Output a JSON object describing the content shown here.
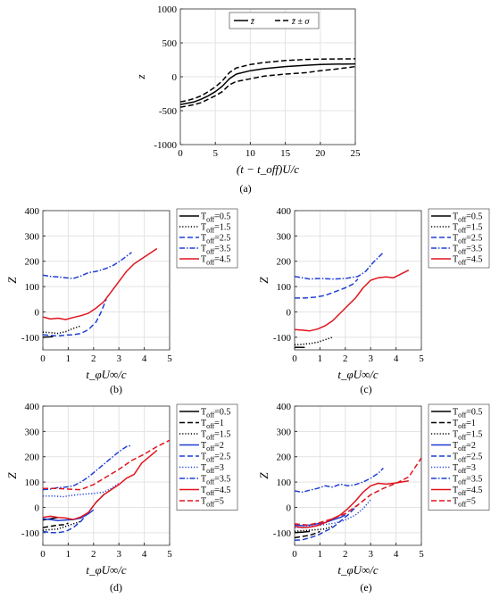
{
  "chart_data": [
    {
      "id": "a",
      "type": "line",
      "caption": "(a)",
      "xlabel": "(t − t_off)U/c",
      "ylabel": "z",
      "xlim": [
        0,
        25
      ],
      "ylim": [
        -1000,
        1000
      ],
      "xticks": [
        "0",
        "5",
        "10",
        "15",
        "20",
        "25"
      ],
      "yticks": [
        "-1000",
        "-500",
        "0",
        "500",
        "1000"
      ],
      "grid": true,
      "legend_position": "top-center",
      "legend_orientation": "horizontal",
      "series": [
        {
          "name": "z̄",
          "style": "solid",
          "color": "#000000",
          "x": [
            0,
            1,
            2,
            3,
            4,
            5,
            6,
            7,
            8,
            10,
            12,
            15,
            18,
            20,
            22,
            25
          ],
          "y": [
            -410,
            -390,
            -370,
            -330,
            -280,
            -220,
            -140,
            -30,
            40,
            90,
            120,
            150,
            170,
            180,
            185,
            190
          ]
        },
        {
          "name": "z̄ ± σ",
          "style": "dashed",
          "color": "#000000",
          "x": [
            0,
            1,
            2,
            3,
            4,
            5,
            6,
            7,
            8,
            10,
            12,
            15,
            18,
            20,
            22,
            25
          ],
          "y": [
            -370,
            -350,
            -320,
            -280,
            -220,
            -150,
            -60,
            60,
            130,
            180,
            210,
            240,
            255,
            260,
            262,
            265
          ]
        },
        {
          "name": "",
          "style": "dashed",
          "color": "#000000",
          "x": [
            0,
            1,
            2,
            3,
            4,
            5,
            6,
            7,
            8,
            10,
            12,
            15,
            18,
            20,
            22,
            25
          ],
          "y": [
            -450,
            -430,
            -410,
            -380,
            -330,
            -280,
            -220,
            -120,
            -70,
            -30,
            10,
            40,
            60,
            90,
            110,
            150
          ]
        }
      ]
    },
    {
      "id": "b",
      "type": "line",
      "caption": "(b)",
      "xlabel": "t_φU∞/c",
      "ylabel": "Z",
      "xlim": [
        0,
        5
      ],
      "ylim": [
        -150,
        400
      ],
      "xticks": [
        "0",
        "1",
        "2",
        "3",
        "4",
        "5"
      ],
      "yticks": [
        "-100",
        "0",
        "100",
        "200",
        "300",
        "400"
      ],
      "grid": true,
      "legend_position": "outside-right",
      "series": [
        {
          "name": "T_off=0.5",
          "style": "solid",
          "color": "#000000",
          "x": [
            0,
            0.4
          ],
          "y": [
            -100,
            -98
          ]
        },
        {
          "name": "T_off=1.5",
          "style": "dotted",
          "color": "#000000",
          "x": [
            0,
            0.3,
            0.6,
            0.9,
            1.2,
            1.5
          ],
          "y": [
            -80,
            -82,
            -85,
            -78,
            -65,
            -55
          ]
        },
        {
          "name": "T_off=2.5",
          "style": "dashed",
          "color": "#1f3fd6",
          "x": [
            0,
            0.3,
            0.6,
            0.9,
            1.2,
            1.5,
            1.8,
            2.1,
            2.3,
            2.5
          ],
          "y": [
            -90,
            -93,
            -95,
            -92,
            -90,
            -85,
            -70,
            -40,
            0,
            50
          ]
        },
        {
          "name": "T_off=3.5",
          "style": "dashdot",
          "color": "#1f3fd6",
          "x": [
            0,
            0.3,
            0.6,
            0.9,
            1.2,
            1.5,
            1.8,
            2.1,
            2.5,
            2.8,
            3.1,
            3.5
          ],
          "y": [
            145,
            140,
            138,
            135,
            132,
            142,
            155,
            160,
            172,
            185,
            205,
            235
          ]
        },
        {
          "name": "T_off=4.5",
          "style": "solid",
          "color": "#e0141e",
          "x": [
            0,
            0.3,
            0.6,
            0.9,
            1.2,
            1.5,
            1.8,
            2.1,
            2.4,
            2.7,
            3.0,
            3.3,
            3.6,
            3.9,
            4.2,
            4.5
          ],
          "y": [
            -20,
            -28,
            -25,
            -30,
            -22,
            -15,
            -5,
            15,
            40,
            80,
            120,
            160,
            190,
            210,
            230,
            250
          ]
        }
      ]
    },
    {
      "id": "c",
      "type": "line",
      "caption": "(c)",
      "xlabel": "t_φU∞/c",
      "ylabel": "Z",
      "xlim": [
        0,
        5
      ],
      "ylim": [
        -150,
        400
      ],
      "xticks": [
        "0",
        "1",
        "2",
        "3",
        "4",
        "5"
      ],
      "yticks": [
        "-100",
        "0",
        "100",
        "200",
        "300",
        "400"
      ],
      "grid": true,
      "legend_position": "outside-right",
      "series": [
        {
          "name": "T_off=0.5",
          "style": "solid",
          "color": "#000000",
          "x": [
            0,
            0.4
          ],
          "y": [
            -140,
            -140
          ]
        },
        {
          "name": "T_off=1.5",
          "style": "dotted",
          "color": "#000000",
          "x": [
            0,
            0.3,
            0.6,
            0.9,
            1.2,
            1.5
          ],
          "y": [
            -130,
            -128,
            -125,
            -120,
            -110,
            -100
          ]
        },
        {
          "name": "T_off=2.5",
          "style": "dashed",
          "color": "#1f3fd6",
          "x": [
            0,
            0.4,
            0.8,
            1.2,
            1.6,
            2.0,
            2.3,
            2.5
          ],
          "y": [
            55,
            55,
            58,
            65,
            80,
            95,
            110,
            130
          ]
        },
        {
          "name": "T_off=3.5",
          "style": "dashdot",
          "color": "#1f3fd6",
          "x": [
            0,
            0.3,
            0.6,
            1.0,
            1.5,
            2.0,
            2.5,
            2.8,
            3.1,
            3.5
          ],
          "y": [
            140,
            135,
            130,
            132,
            130,
            132,
            140,
            160,
            195,
            235
          ]
        },
        {
          "name": "T_off=4.5",
          "style": "solid",
          "color": "#e0141e",
          "x": [
            0,
            0.3,
            0.6,
            0.9,
            1.2,
            1.5,
            1.8,
            2.1,
            2.4,
            2.7,
            3.0,
            3.3,
            3.6,
            3.9,
            4.2,
            4.5
          ],
          "y": [
            -70,
            -72,
            -75,
            -68,
            -55,
            -35,
            -5,
            25,
            55,
            95,
            125,
            135,
            138,
            135,
            150,
            165
          ]
        }
      ]
    },
    {
      "id": "d",
      "type": "line",
      "caption": "(d)",
      "xlabel": "t_φU∞/c",
      "ylabel": "Z",
      "xlim": [
        0,
        5
      ],
      "ylim": [
        -150,
        400
      ],
      "xticks": [
        "0",
        "1",
        "2",
        "3",
        "4",
        "5"
      ],
      "yticks": [
        "-100",
        "0",
        "100",
        "200",
        "300",
        "400"
      ],
      "grid": true,
      "legend_position": "outside-right",
      "series": [
        {
          "name": "T_off=0.5",
          "style": "solid",
          "color": "#000000",
          "x": [
            0,
            0.3,
            0.6
          ],
          "y": [
            -50,
            -45,
            -40
          ]
        },
        {
          "name": "T_off=1",
          "style": "dashed",
          "color": "#000000",
          "x": [
            0,
            0.3,
            0.6,
            0.9,
            1.0
          ],
          "y": [
            -80,
            -75,
            -70,
            -68,
            -62
          ]
        },
        {
          "name": "T_off=1.5",
          "style": "dotted",
          "color": "#000000",
          "x": [
            0,
            0.3,
            0.6,
            0.9,
            1.2,
            1.5
          ],
          "y": [
            -90,
            -88,
            -85,
            -75,
            -65,
            -55
          ]
        },
        {
          "name": "T_off=2",
          "style": "solid",
          "color": "#1f3fd6",
          "x": [
            0,
            0.3,
            0.6,
            0.9,
            1.2,
            1.5,
            1.8,
            2.0
          ],
          "y": [
            -45,
            -48,
            -52,
            -50,
            -48,
            -42,
            -25,
            -10
          ]
        },
        {
          "name": "T_off=2.5",
          "style": "dashed",
          "color": "#1f3fd6",
          "x": [
            0,
            0.3,
            0.6,
            0.9,
            1.2,
            1.5,
            1.8,
            2.1,
            2.5
          ],
          "y": [
            -95,
            -100,
            -100,
            -95,
            -80,
            -55,
            -20,
            20,
            60
          ]
        },
        {
          "name": "T_off=3",
          "style": "dotted",
          "color": "#1f3fd6",
          "x": [
            0,
            0.4,
            0.8,
            1.2,
            1.6,
            2.0,
            2.4,
            2.7,
            3.0
          ],
          "y": [
            45,
            45,
            42,
            48,
            52,
            55,
            60,
            75,
            95
          ]
        },
        {
          "name": "T_off=3.5",
          "style": "dashdot",
          "color": "#1f3fd6",
          "x": [
            0,
            0.3,
            0.6,
            0.9,
            1.2,
            1.5,
            1.8,
            2.1,
            2.4,
            2.7,
            3.0,
            3.3,
            3.5
          ],
          "y": [
            70,
            72,
            78,
            80,
            85,
            100,
            120,
            145,
            170,
            195,
            220,
            240,
            245
          ]
        },
        {
          "name": "T_off=4.5",
          "style": "solid",
          "color": "#e0141e",
          "x": [
            0,
            0.3,
            0.6,
            0.9,
            1.2,
            1.5,
            1.8,
            2.1,
            2.4,
            2.7,
            3.0,
            3.3,
            3.6,
            3.9,
            4.2,
            4.5
          ],
          "y": [
            -40,
            -35,
            -40,
            -42,
            -48,
            -38,
            -20,
            20,
            50,
            70,
            90,
            115,
            130,
            175,
            200,
            225
          ]
        },
        {
          "name": "T_off=5",
          "style": "dashed",
          "color": "#e0141e",
          "x": [
            0,
            0.5,
            1.0,
            1.5,
            2.0,
            2.5,
            3.0,
            3.5,
            4.0,
            4.5,
            5.0
          ],
          "y": [
            75,
            75,
            72,
            70,
            90,
            120,
            150,
            185,
            210,
            240,
            265
          ]
        }
      ]
    },
    {
      "id": "e",
      "type": "line",
      "caption": "(e)",
      "xlabel": "t_φU∞/c",
      "ylabel": "Z",
      "xlim": [
        0,
        5
      ],
      "ylim": [
        -150,
        400
      ],
      "xticks": [
        "0",
        "1",
        "2",
        "3",
        "4",
        "5"
      ],
      "yticks": [
        "-100",
        "0",
        "100",
        "200",
        "300",
        "400"
      ],
      "grid": true,
      "legend_position": "outside-right",
      "series": [
        {
          "name": "T_off=0.5",
          "style": "solid",
          "color": "#000000",
          "x": [
            0,
            0.3,
            0.6
          ],
          "y": [
            -100,
            -98,
            -95
          ]
        },
        {
          "name": "T_off=1",
          "style": "dashed",
          "color": "#000000",
          "x": [
            0,
            0.3,
            0.6,
            0.9,
            1.0
          ],
          "y": [
            -120,
            -115,
            -110,
            -100,
            -95
          ]
        },
        {
          "name": "T_off=1.5",
          "style": "dotted",
          "color": "#000000",
          "x": [
            0,
            0.3,
            0.6,
            0.9,
            1.2,
            1.5
          ],
          "y": [
            -95,
            -92,
            -90,
            -88,
            -85,
            -75
          ]
        },
        {
          "name": "T_off=2",
          "style": "solid",
          "color": "#1f3fd6",
          "x": [
            0,
            0.3,
            0.6,
            0.9,
            1.2,
            1.5,
            1.8,
            2.0
          ],
          "y": [
            -70,
            -72,
            -70,
            -65,
            -60,
            -50,
            -40,
            -30
          ]
        },
        {
          "name": "T_off=2.5",
          "style": "dashed",
          "color": "#1f3fd6",
          "x": [
            0,
            0.3,
            0.6,
            0.9,
            1.2,
            1.5,
            1.8,
            2.1,
            2.5
          ],
          "y": [
            -130,
            -128,
            -120,
            -110,
            -95,
            -80,
            -55,
            -30,
            10
          ]
        },
        {
          "name": "T_off=3",
          "style": "dotted",
          "color": "#1f3fd6",
          "x": [
            0,
            0.4,
            0.8,
            1.2,
            1.6,
            2.0,
            2.4,
            2.7,
            3.0
          ],
          "y": [
            -80,
            -78,
            -72,
            -68,
            -62,
            -50,
            -30,
            -5,
            30
          ]
        },
        {
          "name": "T_off=3.5",
          "style": "dashdot",
          "color": "#1f3fd6",
          "x": [
            0,
            0.3,
            0.6,
            0.9,
            1.2,
            1.5,
            1.8,
            2.1,
            2.4,
            2.7,
            3.0,
            3.3,
            3.5
          ],
          "y": [
            65,
            60,
            68,
            75,
            85,
            80,
            92,
            85,
            90,
            100,
            115,
            135,
            155
          ]
        },
        {
          "name": "T_off=4.5",
          "style": "solid",
          "color": "#e0141e",
          "x": [
            0,
            0.3,
            0.6,
            0.9,
            1.2,
            1.5,
            1.8,
            2.1,
            2.4,
            2.7,
            3.0,
            3.3,
            3.6,
            3.9,
            4.2,
            4.5
          ],
          "y": [
            -75,
            -80,
            -78,
            -72,
            -60,
            -45,
            -30,
            -5,
            25,
            60,
            85,
            95,
            92,
            95,
            100,
            105
          ]
        },
        {
          "name": "T_off=5",
          "style": "dashed",
          "color": "#e0141e",
          "x": [
            0,
            0.5,
            1.0,
            1.5,
            2.0,
            2.5,
            3.0,
            3.5,
            4.0,
            4.5,
            5.0
          ],
          "y": [
            -65,
            -70,
            -60,
            -45,
            -25,
            10,
            50,
            75,
            95,
            120,
            195
          ]
        }
      ]
    }
  ]
}
